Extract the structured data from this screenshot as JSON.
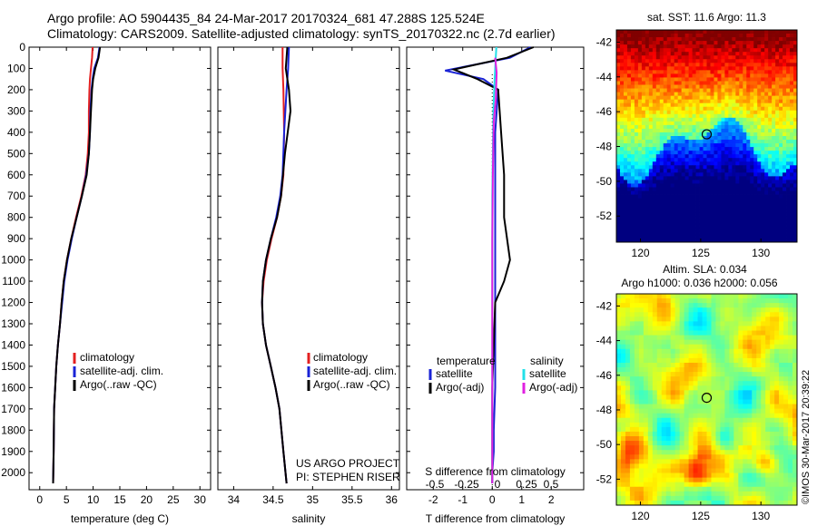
{
  "header": {
    "line1": "Argo profile: AO 5904435_84 24-Mar-2017 20170324_681 47.288S 125.524E",
    "line2": "Climatology: CARS2009. Satellite-adjusted climatology: synTS_20170322.nc (2.7d earlier)"
  },
  "colors": {
    "climatology": "#e32020",
    "satellite": "#1a23d6",
    "argo": "#000000",
    "sal_satellite": "#22e0e8",
    "sal_argo": "#e020e0"
  },
  "chart_data": [
    {
      "type": "line",
      "id": "temperature",
      "xlabel": "temperature (deg C)",
      "ylabel": "",
      "xlim": [
        -2,
        32
      ],
      "ylim": [
        2080,
        0
      ],
      "xticks": [
        0,
        5,
        10,
        15,
        20,
        25,
        30
      ],
      "yticks": [
        0,
        100,
        200,
        300,
        400,
        500,
        600,
        700,
        800,
        900,
        1000,
        1100,
        1200,
        1300,
        1400,
        1500,
        1600,
        1700,
        1800,
        1900,
        2000
      ],
      "legend": [
        "climatology",
        "satellite-adj. clim.",
        "Argo(..raw -QC)"
      ],
      "series": [
        {
          "name": "climatology",
          "color": "#e32020",
          "x": [
            9.9,
            9.8,
            9.6,
            9.4,
            9.3,
            9.2,
            9.2,
            9.0,
            8.6,
            7.8,
            6.8,
            5.9,
            5.1,
            4.5,
            4.1,
            3.8,
            3.4,
            3.1,
            2.9,
            2.7,
            2.6,
            2.5
          ],
          "y": [
            0,
            50,
            100,
            150,
            200,
            300,
            400,
            500,
            600,
            700,
            800,
            900,
            1000,
            1100,
            1200,
            1300,
            1400,
            1500,
            1600,
            1700,
            1900,
            2050
          ]
        },
        {
          "name": "satellite-adj. clim.",
          "color": "#1a23d6",
          "x": [
            11.2,
            10.9,
            10.2,
            9.9,
            9.7,
            9.5,
            9.4,
            9.2,
            8.7,
            7.9,
            6.9,
            6.0,
            5.2,
            4.6,
            4.2,
            3.8,
            3.4,
            3.1,
            2.9,
            2.7,
            2.6,
            2.5
          ],
          "y": [
            0,
            50,
            100,
            150,
            200,
            300,
            400,
            500,
            600,
            700,
            800,
            900,
            1000,
            1100,
            1200,
            1300,
            1400,
            1500,
            1600,
            1700,
            1900,
            2050
          ]
        },
        {
          "name": "Argo(..raw -QC)",
          "color": "#000000",
          "x": [
            11.3,
            11.0,
            10.4,
            10.0,
            9.8,
            9.6,
            9.4,
            9.2,
            8.8,
            7.9,
            6.9,
            5.9,
            5.1,
            4.5,
            4.1,
            3.8,
            3.4,
            3.1,
            2.9,
            2.7,
            2.6,
            2.5
          ],
          "y": [
            0,
            50,
            100,
            150,
            200,
            300,
            400,
            500,
            600,
            700,
            800,
            900,
            1000,
            1100,
            1200,
            1300,
            1400,
            1500,
            1600,
            1700,
            1900,
            2050
          ]
        }
      ]
    },
    {
      "type": "line",
      "id": "salinity",
      "xlabel": "salinity",
      "ylabel": "",
      "xlim": [
        33.8,
        36.1
      ],
      "ylim": [
        2080,
        0
      ],
      "xticks": [
        34,
        34.5,
        35,
        35.5,
        36
      ],
      "legend": [
        "climatology",
        "satellite-adj. clim.",
        "Argo(..raw -QC)"
      ],
      "annotation": [
        "US ARGO PROJECT",
        "PI: STEPHEN RISER"
      ],
      "series": [
        {
          "name": "climatology",
          "color": "#e32020",
          "x": [
            34.62,
            34.62,
            34.63,
            34.64,
            34.63,
            34.6,
            34.55,
            34.48,
            34.42,
            34.38,
            34.36,
            34.37,
            34.41,
            34.47,
            34.53,
            34.58,
            34.63,
            34.67
          ],
          "y": [
            0,
            100,
            200,
            400,
            600,
            700,
            800,
            900,
            1000,
            1100,
            1200,
            1300,
            1400,
            1500,
            1600,
            1700,
            1900,
            2050
          ]
        },
        {
          "name": "satellite-adj. clim.",
          "color": "#1a23d6",
          "x": [
            34.7,
            34.69,
            34.67,
            34.64,
            34.62,
            34.59,
            34.54,
            34.47,
            34.41,
            34.37,
            34.36,
            34.37,
            34.41,
            34.47,
            34.53,
            34.58,
            34.63,
            34.67
          ],
          "y": [
            0,
            100,
            200,
            400,
            600,
            700,
            800,
            900,
            1000,
            1100,
            1200,
            1300,
            1400,
            1500,
            1600,
            1700,
            1900,
            2050
          ]
        },
        {
          "name": "Argo(..raw -QC)",
          "color": "#000000",
          "x": [
            34.68,
            34.66,
            34.7,
            34.72,
            34.65,
            34.6,
            34.55,
            34.47,
            34.41,
            34.37,
            34.36,
            34.37,
            34.41,
            34.47,
            34.53,
            34.58,
            34.63,
            34.67
          ],
          "y": [
            0,
            100,
            200,
            300,
            500,
            700,
            800,
            900,
            1000,
            1100,
            1200,
            1300,
            1400,
            1500,
            1600,
            1700,
            1900,
            2050
          ]
        }
      ]
    },
    {
      "type": "line",
      "id": "differences",
      "xlabel": "T difference from climatology",
      "xlabel2": "S difference from climatology",
      "xlim": [
        -2.9,
        3.1
      ],
      "ylim": [
        2080,
        0
      ],
      "xticks": [
        -2,
        -1,
        0,
        1,
        2
      ],
      "s_xticks": [
        "-0.5",
        "-0.25",
        "0",
        "0.25",
        "0.5"
      ],
      "legend_headers": [
        "temperature",
        "salinity"
      ],
      "legend": [
        "satellite",
        "Argo(-adj)",
        "satellite",
        "Argo(-adj)"
      ],
      "series": [
        {
          "name": "temperature satellite",
          "color": "#1a23d6",
          "x": [
            1.3,
            0.6,
            -1.6,
            -0.3,
            0.2,
            0.1,
            0.1,
            0.1,
            0.1,
            0.1,
            0.1,
            0.1,
            0.05,
            0.05,
            0.0,
            0.0
          ],
          "y": [
            0,
            50,
            110,
            150,
            200,
            400,
            600,
            800,
            1000,
            1200,
            1400,
            1600,
            1800,
            1900,
            2000,
            2050
          ]
        },
        {
          "name": "temperature Argo(-adj)",
          "color": "#000000",
          "x": [
            1.4,
            0.5,
            -1.3,
            -0.5,
            0.2,
            0.3,
            0.4,
            0.4,
            0.6,
            0.4,
            0.1,
            0.05,
            0.0,
            0.0,
            0.0
          ],
          "y": [
            0,
            50,
            105,
            150,
            200,
            400,
            600,
            800,
            1000,
            1100,
            1200,
            1400,
            1600,
            1800,
            2050
          ]
        },
        {
          "name": "salinity satellite",
          "color": "#22e0e8",
          "x": [
            0.14,
            0.12,
            0.08,
            0.04,
            0.02,
            0.0,
            0.0,
            0.0,
            0.0,
            0.0,
            0.0,
            0.0
          ],
          "y": [
            0,
            50,
            150,
            300,
            500,
            700,
            900,
            1100,
            1300,
            1500,
            1800,
            2050
          ]
        },
        {
          "name": "salinity Argo(-adj)",
          "color": "#e020e0",
          "x": [
            0.1,
            0.15,
            0.12,
            0.05,
            0.02,
            0.0,
            0.0,
            0.0,
            0.0
          ],
          "y": [
            50,
            120,
            250,
            350,
            600,
            900,
            1200,
            1500,
            2050
          ]
        }
      ]
    },
    {
      "type": "heatmap",
      "id": "sst-map",
      "title": "sat. SST: 11.6  Argo: 11.3",
      "xticks": [
        120,
        125,
        130
      ],
      "yticks": [
        -42,
        -44,
        -46,
        -48,
        -50,
        -52
      ],
      "xlim": [
        118,
        133
      ],
      "ylim": [
        -53.5,
        -41.3
      ],
      "marker": [
        125.5,
        -47.3
      ]
    },
    {
      "type": "heatmap",
      "id": "sla-map",
      "title": "Altim. SLA: 0.034",
      "subtitle": "Argo h1000: 0.036  h2000: 0.056",
      "xticks": [
        120,
        125,
        130
      ],
      "yticks": [
        -42,
        -44,
        -46,
        -48,
        -50,
        -52
      ],
      "xlim": [
        118,
        133
      ],
      "ylim": [
        -53.5,
        -41.3
      ],
      "marker": [
        125.5,
        -47.3
      ]
    }
  ],
  "side_label": "©IMOS 30-Mar-2017 20:39:22"
}
